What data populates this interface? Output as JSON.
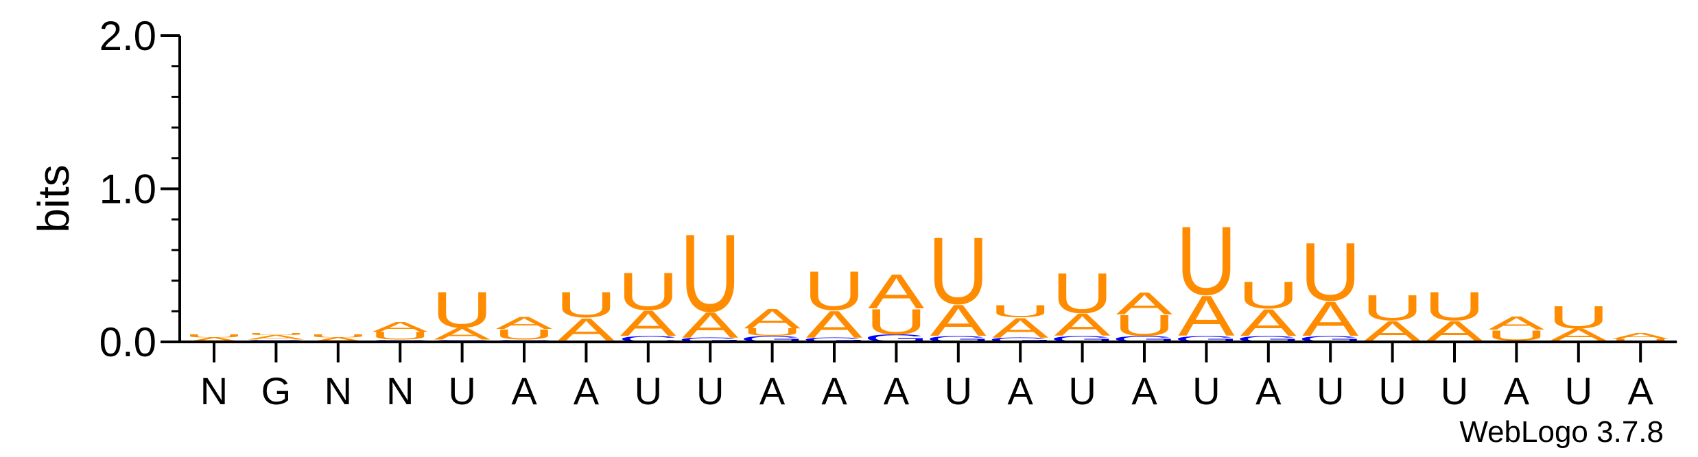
{
  "chart_data": {
    "type": "sequence-logo",
    "ylabel": "bits",
    "ylim": [
      0,
      2.0
    ],
    "yticks": [
      "0.0",
      "1.0",
      "2.0"
    ],
    "credit": "WebLogo 3.7.8",
    "colors": {
      "A": "#ff8c00",
      "U": "#ff8c00",
      "G": "#0000ff",
      "C": "#0000ff",
      "N": "#000000"
    },
    "positions": [
      {
        "label": "N",
        "stack": [
          [
            "A",
            0.03
          ],
          [
            "U",
            0.02
          ]
        ]
      },
      {
        "label": "G",
        "stack": [
          [
            "G",
            0.015
          ],
          [
            "A",
            0.03
          ],
          [
            "U",
            0.015
          ]
        ]
      },
      {
        "label": "N",
        "stack": [
          [
            "A",
            0.03
          ],
          [
            "U",
            0.02
          ]
        ]
      },
      {
        "label": "N",
        "stack": [
          [
            "C",
            0.015
          ],
          [
            "U",
            0.05
          ],
          [
            "A",
            0.07
          ]
        ]
      },
      {
        "label": "U",
        "stack": [
          [
            "C",
            0.015
          ],
          [
            "A",
            0.08
          ],
          [
            "U",
            0.24
          ]
        ]
      },
      {
        "label": "A",
        "stack": [
          [
            "C",
            0.015
          ],
          [
            "U",
            0.07
          ],
          [
            "A",
            0.08
          ]
        ]
      },
      {
        "label": "A",
        "stack": [
          [
            "C",
            0.01
          ],
          [
            "A",
            0.15
          ],
          [
            "U",
            0.17
          ]
        ]
      },
      {
        "label": "U",
        "stack": [
          [
            "C",
            0.04
          ],
          [
            "A",
            0.17
          ],
          [
            "U",
            0.25
          ]
        ]
      },
      {
        "label": "U",
        "stack": [
          [
            "G",
            0.03
          ],
          [
            "A",
            0.17
          ],
          [
            "U",
            0.52
          ]
        ]
      },
      {
        "label": "A",
        "stack": [
          [
            "G",
            0.04
          ],
          [
            "U",
            0.05
          ],
          [
            "A",
            0.13
          ]
        ]
      },
      {
        "label": "A",
        "stack": [
          [
            "G",
            0.03
          ],
          [
            "A",
            0.18
          ],
          [
            "U",
            0.26
          ]
        ]
      },
      {
        "label": "A",
        "stack": [
          [
            "G",
            0.05
          ],
          [
            "U",
            0.17
          ],
          [
            "A",
            0.23
          ]
        ]
      },
      {
        "label": "U",
        "stack": [
          [
            "G",
            0.04
          ],
          [
            "A",
            0.21
          ],
          [
            "U",
            0.45
          ]
        ]
      },
      {
        "label": "A",
        "stack": [
          [
            "G",
            0.03
          ],
          [
            "A",
            0.13
          ],
          [
            "U",
            0.08
          ]
        ]
      },
      {
        "label": "U",
        "stack": [
          [
            "G",
            0.04
          ],
          [
            "A",
            0.15
          ],
          [
            "U",
            0.27
          ]
        ]
      },
      {
        "label": "A",
        "stack": [
          [
            "G",
            0.04
          ],
          [
            "U",
            0.14
          ],
          [
            "A",
            0.15
          ]
        ]
      },
      {
        "label": "U",
        "stack": [
          [
            "G",
            0.04
          ],
          [
            "A",
            0.27
          ],
          [
            "U",
            0.46
          ]
        ]
      },
      {
        "label": "A",
        "stack": [
          [
            "G",
            0.04
          ],
          [
            "A",
            0.18
          ],
          [
            "U",
            0.18
          ]
        ]
      },
      {
        "label": "U",
        "stack": [
          [
            "G",
            0.04
          ],
          [
            "A",
            0.23
          ],
          [
            "U",
            0.39
          ]
        ]
      },
      {
        "label": "U",
        "stack": [
          [
            "C",
            0.01
          ],
          [
            "A",
            0.13
          ],
          [
            "U",
            0.17
          ]
        ]
      },
      {
        "label": "U",
        "stack": [
          [
            "C",
            0.01
          ],
          [
            "A",
            0.13
          ],
          [
            "U",
            0.19
          ]
        ]
      },
      {
        "label": "A",
        "stack": [
          [
            "C",
            0.01
          ],
          [
            "U",
            0.07
          ],
          [
            "A",
            0.09
          ]
        ]
      },
      {
        "label": "U",
        "stack": [
          [
            "C",
            0.01
          ],
          [
            "A",
            0.08
          ],
          [
            "U",
            0.15
          ]
        ]
      },
      {
        "label": "A",
        "stack": [
          [
            "U",
            0.02
          ],
          [
            "A",
            0.04
          ]
        ]
      }
    ]
  }
}
